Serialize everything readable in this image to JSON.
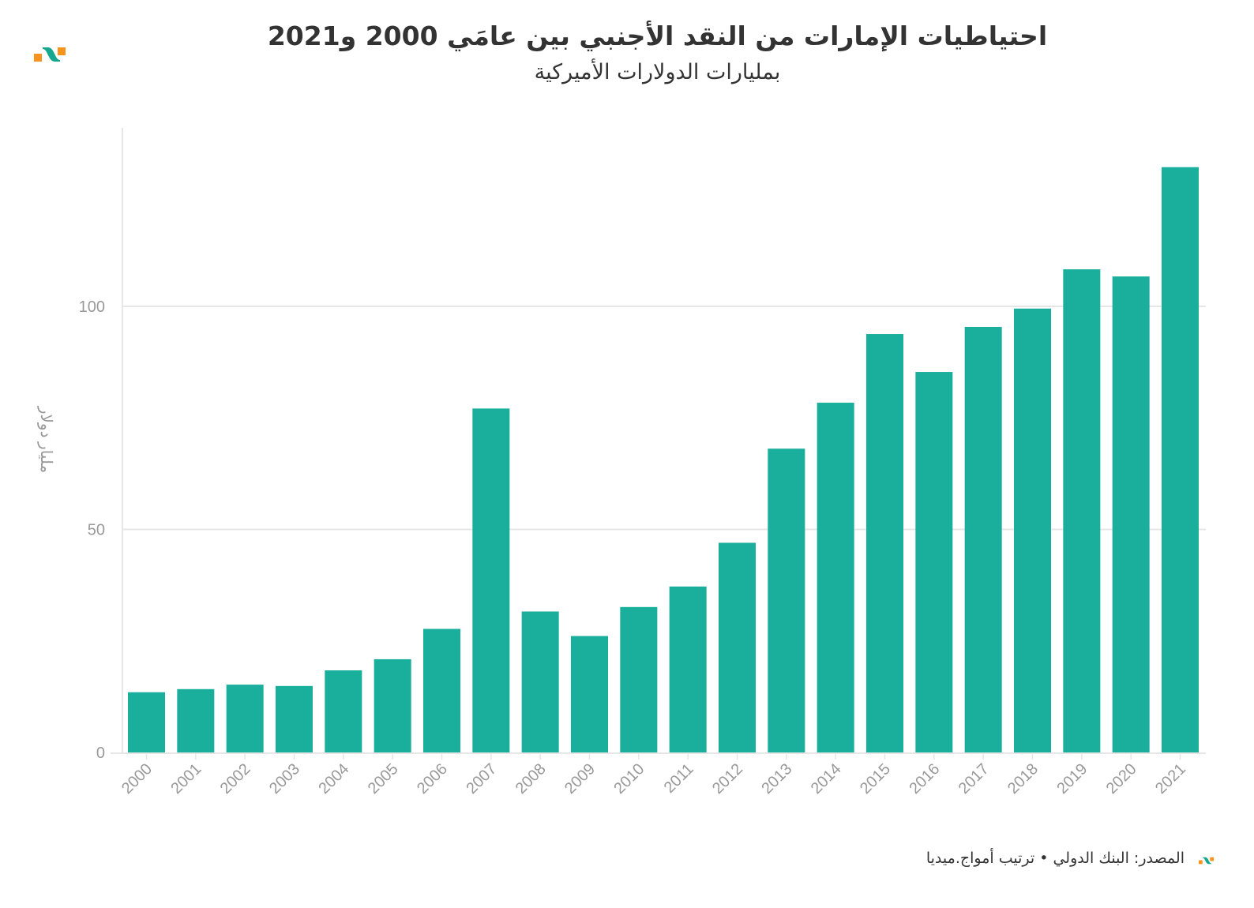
{
  "logo_colors": {
    "orange": "#f7941d",
    "teal": "#16a78f"
  },
  "footer": {
    "source": "المصدر: البنك الدولي • ترتيب أمواج.ميديا"
  },
  "chart_data": {
    "type": "bar",
    "title": "احتياطيات الإمارات من النقد الأجنبي بين عامَي 2000 و2021",
    "subtitle": "بمليارات الدولارات الأميركية",
    "xlabel": "",
    "ylabel": "مليار دولار",
    "ylim": [
      0,
      140
    ],
    "yticks": [
      0,
      50,
      100
    ],
    "ytick_labels": [
      "0",
      "50",
      "100"
    ],
    "grid": true,
    "bar_color": "#1aae9c",
    "categories": [
      "2000",
      "2001",
      "2002",
      "2003",
      "2004",
      "2005",
      "2006",
      "2007",
      "2008",
      "2009",
      "2010",
      "2011",
      "2012",
      "2013",
      "2014",
      "2015",
      "2016",
      "2017",
      "2018",
      "2019",
      "2020",
      "2021"
    ],
    "values": [
      13.5,
      14.2,
      15.2,
      14.9,
      18.4,
      20.9,
      27.7,
      77.1,
      31.6,
      26.1,
      32.6,
      37.2,
      47.0,
      68.1,
      78.4,
      93.8,
      85.3,
      95.4,
      99.5,
      108.3,
      106.7,
      131.2
    ]
  }
}
